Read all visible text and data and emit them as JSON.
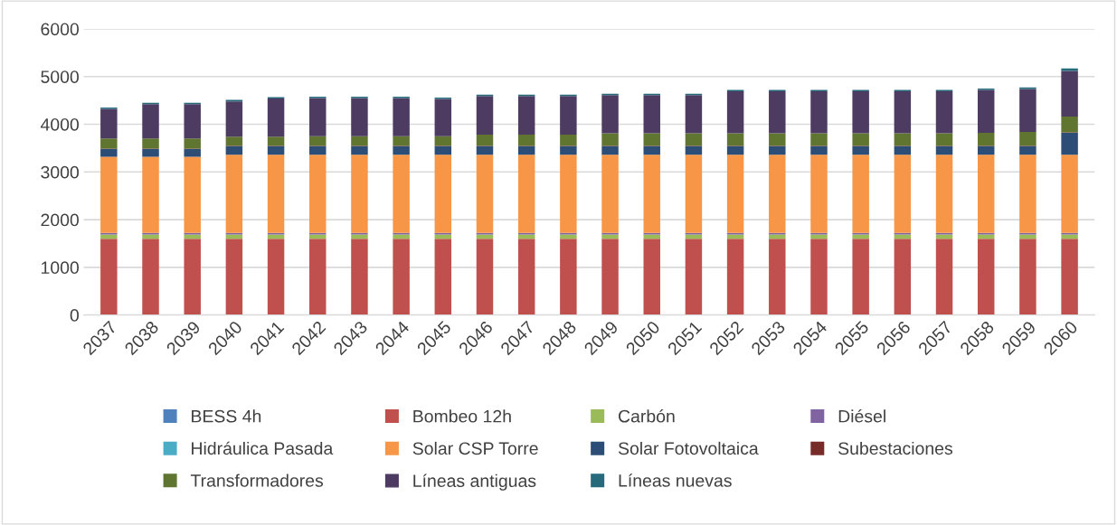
{
  "chart_data": {
    "type": "bar",
    "stacked": true,
    "categories": [
      "2037",
      "2038",
      "2039",
      "2040",
      "2041",
      "2042",
      "2043",
      "2044",
      "2045",
      "2046",
      "2047",
      "2048",
      "2049",
      "2050",
      "2051",
      "2052",
      "2053",
      "2054",
      "2055",
      "2056",
      "2057",
      "2058",
      "2059",
      "2060"
    ],
    "series": [
      {
        "name": "BESS 4h",
        "color": "#4f81bd",
        "values": [
          0,
          0,
          0,
          0,
          0,
          0,
          0,
          0,
          0,
          0,
          0,
          0,
          0,
          0,
          0,
          0,
          0,
          0,
          0,
          0,
          0,
          0,
          0,
          0
        ]
      },
      {
        "name": "Bombeo 12h",
        "color": "#c0504d",
        "values": [
          1600,
          1600,
          1600,
          1600,
          1600,
          1600,
          1600,
          1600,
          1600,
          1600,
          1600,
          1600,
          1600,
          1600,
          1600,
          1600,
          1600,
          1600,
          1600,
          1600,
          1600,
          1600,
          1600,
          1600
        ]
      },
      {
        "name": "Carbón",
        "color": "#9bbb59",
        "values": [
          90,
          90,
          90,
          90,
          90,
          90,
          90,
          90,
          90,
          90,
          90,
          90,
          90,
          90,
          90,
          90,
          90,
          90,
          90,
          90,
          90,
          90,
          90,
          90
        ]
      },
      {
        "name": "Diésel",
        "color": "#8064a2",
        "values": [
          30,
          30,
          30,
          30,
          30,
          30,
          30,
          30,
          30,
          30,
          30,
          30,
          30,
          30,
          30,
          30,
          30,
          30,
          30,
          30,
          30,
          30,
          30,
          30
        ]
      },
      {
        "name": "Hidráulica Pasada",
        "color": "#4bacc6",
        "values": [
          0,
          0,
          0,
          0,
          0,
          0,
          0,
          0,
          0,
          0,
          0,
          0,
          0,
          0,
          0,
          0,
          0,
          0,
          0,
          0,
          0,
          0,
          0,
          0
        ]
      },
      {
        "name": "Solar CSP Torre",
        "color": "#f79646",
        "values": [
          1600,
          1600,
          1600,
          1640,
          1640,
          1640,
          1640,
          1640,
          1640,
          1640,
          1640,
          1640,
          1640,
          1640,
          1640,
          1640,
          1640,
          1640,
          1640,
          1640,
          1640,
          1640,
          1640,
          1640
        ]
      },
      {
        "name": "Solar Fotovoltaica",
        "color": "#2c4d75",
        "values": [
          160,
          160,
          160,
          180,
          180,
          180,
          180,
          180,
          180,
          180,
          180,
          180,
          180,
          180,
          180,
          180,
          180,
          180,
          180,
          180,
          180,
          180,
          180,
          460
        ]
      },
      {
        "name": "Subestaciones",
        "color": "#772c2a",
        "values": [
          10,
          10,
          10,
          10,
          10,
          10,
          10,
          10,
          10,
          10,
          10,
          10,
          10,
          10,
          10,
          10,
          10,
          10,
          10,
          10,
          10,
          10,
          10,
          10
        ]
      },
      {
        "name": "Transformadores",
        "color": "#5f7530",
        "values": [
          210,
          210,
          210,
          190,
          190,
          200,
          200,
          200,
          200,
          230,
          230,
          230,
          260,
          260,
          260,
          260,
          260,
          260,
          260,
          260,
          260,
          270,
          290,
          330
        ]
      },
      {
        "name": "Líneas antiguas",
        "color": "#4d3b62",
        "values": [
          620,
          720,
          720,
          740,
          800,
          800,
          800,
          800,
          780,
          810,
          810,
          810,
          800,
          800,
          800,
          880,
          880,
          880,
          880,
          880,
          880,
          900,
          900,
          960
        ]
      },
      {
        "name": "Líneas nuevas",
        "color": "#276a7c",
        "values": [
          30,
          30,
          30,
          30,
          30,
          30,
          30,
          30,
          30,
          30,
          30,
          30,
          30,
          30,
          30,
          30,
          30,
          30,
          30,
          30,
          30,
          30,
          30,
          50
        ]
      }
    ],
    "ylim": [
      0,
      6000
    ],
    "yticks": [
      0,
      1000,
      2000,
      3000,
      4000,
      5000,
      6000
    ],
    "grid": "y",
    "legend": "bottom"
  }
}
